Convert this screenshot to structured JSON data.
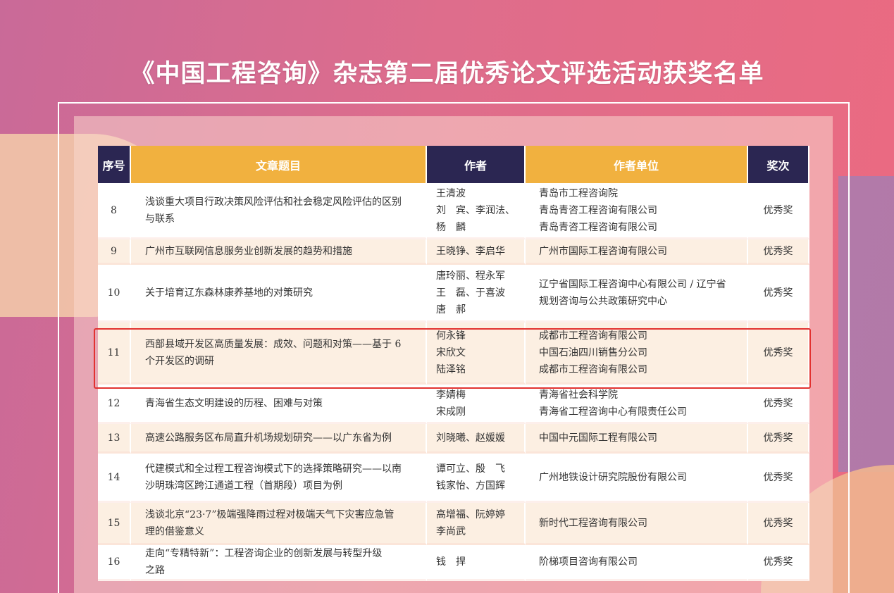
{
  "title": "《中国工程咨询》杂志第二届优秀论文评选活动获奖名单",
  "colors": {
    "header_dark": "#2b2652",
    "header_orange": "#f1b13f",
    "highlight": "#e2312f",
    "row_alt": "#fcefe2"
  },
  "headers": [
    "序号",
    "文章题目",
    "作者",
    "作者单位",
    "奖次"
  ],
  "rows": [
    {
      "no": "8",
      "title": [
        "浅谈重大项目行政决策风险评估和社会稳定风险评估的区别",
        "与联系"
      ],
      "authors": [
        "王清波",
        "刘　宾、李润法、",
        "杨　麟"
      ],
      "units": [
        "青岛市工程咨询院",
        "青岛青咨工程咨询有限公司",
        "青岛青咨工程咨询有限公司"
      ],
      "award": "优秀奖"
    },
    {
      "no": "9",
      "title": [
        "广州市互联网信息服务业创新发展的趋势和措施"
      ],
      "authors": [
        "王晓铮、李启华"
      ],
      "units": [
        "广州市国际工程咨询有限公司"
      ],
      "award": "优秀奖"
    },
    {
      "no": "10",
      "title": [
        "关于培育辽东森林康养基地的对策研究"
      ],
      "authors": [
        "唐玲丽、程永军",
        "王　磊、于喜波",
        "唐　郝"
      ],
      "units": [
        "辽宁省国际工程咨询中心有限公司 / 辽宁省",
        "规划咨询与公共政策研究中心"
      ],
      "award": "优秀奖"
    },
    {
      "no": "11",
      "title": [
        "西部县域开发区高质量发展：成效、问题和对策——基于 6",
        "个开发区的调研"
      ],
      "authors": [
        "何永锋",
        "宋欣文",
        "陆泽铭"
      ],
      "units": [
        "成都市工程咨询有限公司",
        "中国石油四川销售分公司",
        "成都市工程咨询有限公司"
      ],
      "award": "优秀奖",
      "highlighted": true
    },
    {
      "no": "12",
      "title": [
        "青海省生态文明建设的历程、困难与对策"
      ],
      "authors": [
        "李婧梅",
        "宋成刚"
      ],
      "units": [
        "青海省社会科学院",
        "青海省工程咨询中心有限责任公司"
      ],
      "award": "优秀奖"
    },
    {
      "no": "13",
      "title": [
        "高速公路服务区布局直升机场规划研究——以广东省为例"
      ],
      "authors": [
        "刘晓曦、赵媛媛"
      ],
      "units": [
        "中国中元国际工程有限公司"
      ],
      "award": "优秀奖"
    },
    {
      "no": "14",
      "title": [
        "代建模式和全过程工程咨询模式下的选择策略研究——以南",
        "沙明珠湾区跨江通道工程（首期段）项目为例"
      ],
      "authors": [
        "谭可立、殷　飞",
        "钱家怡、方国辉"
      ],
      "units": [
        "广州地铁设计研究院股份有限公司"
      ],
      "award": "优秀奖"
    },
    {
      "no": "15",
      "title": [
        "浅谈北京“23·7”极端强降雨过程对极端天气下灾害应急管",
        "理的借鉴意义"
      ],
      "authors": [
        "高增福、阮婷婷",
        "李尚武"
      ],
      "units": [
        "新时代工程咨询有限公司"
      ],
      "award": "优秀奖"
    },
    {
      "no": "16",
      "title": [
        "走向“专精特新”：工程咨询企业的创新发展与转型升级",
        "之路"
      ],
      "authors": [
        "钱　捍"
      ],
      "units": [
        "阶梯项目咨询有限公司"
      ],
      "award": "优秀奖"
    }
  ]
}
